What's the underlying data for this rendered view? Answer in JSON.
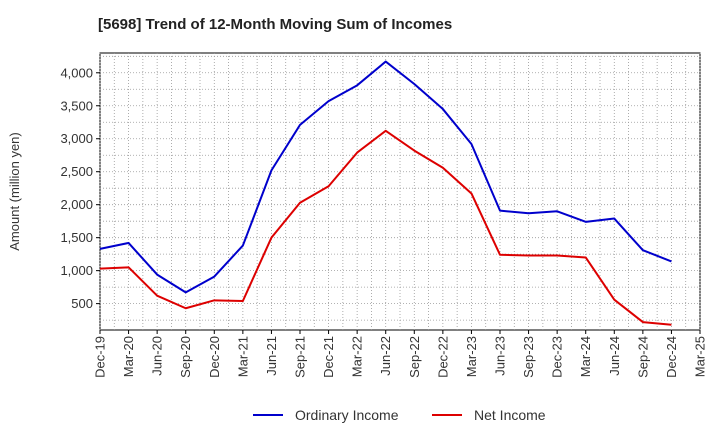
{
  "chart_data": {
    "type": "line",
    "title": "[5698]  Trend of 12-Month Moving Sum of Incomes",
    "xlabel": "",
    "ylabel": "Amount (million yen)",
    "ylim": [
      100,
      4300
    ],
    "yticks": [
      500,
      1000,
      1500,
      2000,
      2500,
      3000,
      3500,
      4000
    ],
    "ytick_labels": [
      "500",
      "1,000",
      "1,500",
      "2,000",
      "2,500",
      "3,000",
      "3,500",
      "4,000"
    ],
    "categories": [
      "Dec-19",
      "Mar-20",
      "Jun-20",
      "Sep-20",
      "Dec-20",
      "Mar-21",
      "Jun-21",
      "Sep-21",
      "Dec-21",
      "Mar-22",
      "Jun-22",
      "Sep-22",
      "Dec-22",
      "Mar-23",
      "Jun-23",
      "Sep-23",
      "Dec-23",
      "Mar-24",
      "Jun-24",
      "Sep-24",
      "Dec-24",
      "Mar-25"
    ],
    "grid": true,
    "legend_position": "bottom-center",
    "series": [
      {
        "name": "Ordinary Income",
        "color": "#0000cc",
        "values": [
          1330,
          1420,
          940,
          670,
          910,
          1380,
          2520,
          3210,
          3570,
          3810,
          4170,
          3830,
          3450,
          2920,
          1910,
          1870,
          1900,
          1740,
          1790,
          1310,
          1140,
          null
        ]
      },
      {
        "name": "Net Income",
        "color": "#dd0000",
        "values": [
          1030,
          1050,
          620,
          430,
          550,
          540,
          1500,
          2030,
          2280,
          2790,
          3120,
          2820,
          2560,
          2170,
          1240,
          1230,
          1230,
          1200,
          560,
          220,
          180,
          null
        ]
      }
    ]
  }
}
